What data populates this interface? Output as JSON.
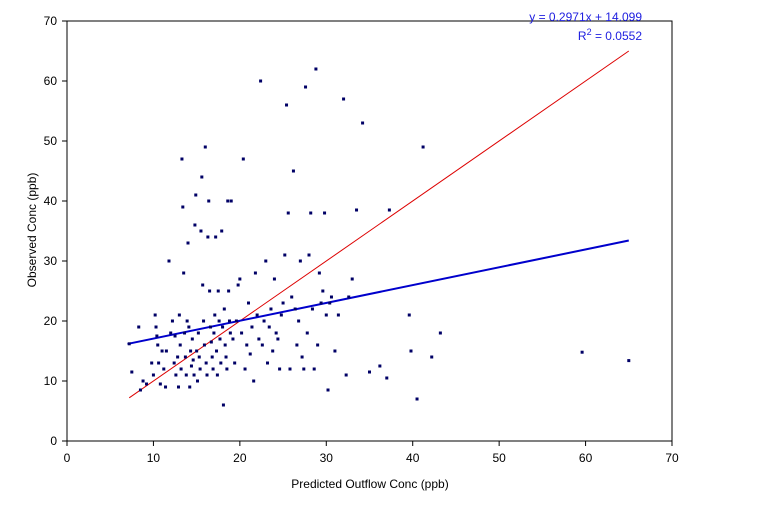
{
  "chart_data": {
    "type": "scatter",
    "xlabel": "Predicted Outflow Conc (ppb)",
    "ylabel": "Observed Conc (ppb)",
    "xlim": [
      0,
      70
    ],
    "ylim": [
      0,
      70
    ],
    "xticks": [
      0,
      10,
      20,
      30,
      40,
      50,
      60,
      70
    ],
    "yticks": [
      0,
      10,
      20,
      30,
      40,
      50,
      60,
      70
    ],
    "grid": false,
    "colors": {
      "points": "#000066",
      "regression_line": "#0000cc",
      "one_to_one_line": "#dd0000",
      "equation_text": "#2020e0"
    },
    "annotations": {
      "equation": "y = 0.2971x + 14.099",
      "r2_prefix": "R",
      "r2_sup": "2",
      "r2_value": " = 0.0552"
    },
    "regression": {
      "slope": 0.2971,
      "intercept": 14.099,
      "x_range": [
        7,
        65
      ]
    },
    "one_to_one_line": {
      "from": [
        7.2,
        7.2
      ],
      "to": [
        65,
        65
      ]
    },
    "points": [
      [
        7.5,
        11.5
      ],
      [
        7.2,
        16.2
      ],
      [
        8.3,
        19
      ],
      [
        8.5,
        8.5
      ],
      [
        8.8,
        10
      ],
      [
        9.2,
        9.5
      ],
      [
        9.8,
        13
      ],
      [
        10,
        11
      ],
      [
        10.2,
        21
      ],
      [
        10.3,
        19
      ],
      [
        10.4,
        17.5
      ],
      [
        10.5,
        16
      ],
      [
        10.6,
        13
      ],
      [
        10.8,
        9.5
      ],
      [
        11,
        15
      ],
      [
        11.2,
        12
      ],
      [
        11.4,
        9
      ],
      [
        11.5,
        15
      ],
      [
        11.8,
        30
      ],
      [
        12,
        18
      ],
      [
        12.2,
        20
      ],
      [
        12.4,
        13
      ],
      [
        12.5,
        17.5
      ],
      [
        12.6,
        11
      ],
      [
        12.8,
        14
      ],
      [
        12.9,
        9
      ],
      [
        13,
        21
      ],
      [
        13.1,
        16
      ],
      [
        13.2,
        12
      ],
      [
        13.3,
        47
      ],
      [
        13.4,
        39
      ],
      [
        13.5,
        28
      ],
      [
        13.6,
        18
      ],
      [
        13.7,
        14
      ],
      [
        13.8,
        11
      ],
      [
        13.9,
        20
      ],
      [
        14,
        33
      ],
      [
        14.1,
        19
      ],
      [
        14.2,
        9
      ],
      [
        14.3,
        15
      ],
      [
        14.4,
        12.5
      ],
      [
        14.5,
        17
      ],
      [
        14.6,
        13.5
      ],
      [
        14.7,
        11
      ],
      [
        14.8,
        36
      ],
      [
        14.9,
        41
      ],
      [
        15,
        15
      ],
      [
        15.1,
        10
      ],
      [
        15.2,
        18
      ],
      [
        15.3,
        14
      ],
      [
        15.4,
        12
      ],
      [
        15.5,
        35
      ],
      [
        15.6,
        44
      ],
      [
        15.7,
        26
      ],
      [
        15.8,
        20
      ],
      [
        15.9,
        16
      ],
      [
        16,
        49
      ],
      [
        16.1,
        13
      ],
      [
        16.2,
        11
      ],
      [
        16.3,
        34
      ],
      [
        16.4,
        40
      ],
      [
        16.5,
        25
      ],
      [
        16.6,
        19
      ],
      [
        16.7,
        16.5
      ],
      [
        16.8,
        14
      ],
      [
        16.9,
        12
      ],
      [
        17,
        18
      ],
      [
        17.1,
        21
      ],
      [
        17.2,
        34
      ],
      [
        17.3,
        15
      ],
      [
        17.4,
        11
      ],
      [
        17.5,
        25
      ],
      [
        17.6,
        20
      ],
      [
        17.7,
        17
      ],
      [
        17.8,
        13
      ],
      [
        17.9,
        35
      ],
      [
        18,
        19
      ],
      [
        18.1,
        6
      ],
      [
        18.2,
        22
      ],
      [
        18.3,
        16
      ],
      [
        18.4,
        14
      ],
      [
        18.5,
        12
      ],
      [
        18.6,
        40
      ],
      [
        18.7,
        25
      ],
      [
        18.8,
        20
      ],
      [
        18.9,
        18
      ],
      [
        19,
        40
      ],
      [
        19.2,
        17
      ],
      [
        19.4,
        13
      ],
      [
        19.6,
        20
      ],
      [
        19.8,
        26
      ],
      [
        20,
        27
      ],
      [
        20.2,
        18
      ],
      [
        20.4,
        47
      ],
      [
        20.6,
        12
      ],
      [
        20.8,
        16
      ],
      [
        21,
        23
      ],
      [
        21.2,
        14.5
      ],
      [
        21.4,
        19
      ],
      [
        21.6,
        10
      ],
      [
        21.8,
        28
      ],
      [
        22,
        21
      ],
      [
        22.2,
        17
      ],
      [
        22.4,
        60
      ],
      [
        22.6,
        16
      ],
      [
        22.8,
        20
      ],
      [
        23,
        30
      ],
      [
        23.2,
        13
      ],
      [
        23.4,
        19
      ],
      [
        23.6,
        22
      ],
      [
        23.8,
        15
      ],
      [
        24,
        27
      ],
      [
        24.2,
        18
      ],
      [
        24.4,
        17
      ],
      [
        24.6,
        12
      ],
      [
        24.8,
        21
      ],
      [
        25,
        23
      ],
      [
        25.2,
        31
      ],
      [
        25.4,
        56
      ],
      [
        25.6,
        38
      ],
      [
        25.8,
        12
      ],
      [
        26,
        24
      ],
      [
        26.2,
        45
      ],
      [
        26.4,
        22
      ],
      [
        26.6,
        16
      ],
      [
        26.8,
        20
      ],
      [
        27,
        30
      ],
      [
        27.2,
        14
      ],
      [
        27.4,
        12
      ],
      [
        27.6,
        59
      ],
      [
        27.8,
        18
      ],
      [
        28,
        31
      ],
      [
        28.2,
        38
      ],
      [
        28.4,
        22
      ],
      [
        28.6,
        12
      ],
      [
        28.8,
        62
      ],
      [
        29,
        16
      ],
      [
        29.2,
        28
      ],
      [
        29.4,
        23
      ],
      [
        29.6,
        25
      ],
      [
        29.8,
        38
      ],
      [
        30,
        21
      ],
      [
        30.2,
        8.5
      ],
      [
        30.4,
        23
      ],
      [
        30.6,
        24
      ],
      [
        31,
        15
      ],
      [
        31.4,
        21
      ],
      [
        32,
        57
      ],
      [
        32.3,
        11
      ],
      [
        32.6,
        24
      ],
      [
        33,
        27
      ],
      [
        33.5,
        38.5
      ],
      [
        34.2,
        53
      ],
      [
        35,
        11.5
      ],
      [
        36.2,
        12.5
      ],
      [
        37,
        10.5
      ],
      [
        37.3,
        38.5
      ],
      [
        39.6,
        21
      ],
      [
        39.8,
        15
      ],
      [
        40.5,
        7
      ],
      [
        41.2,
        49
      ],
      [
        42.2,
        14
      ],
      [
        43.2,
        18
      ],
      [
        59.6,
        14.8
      ],
      [
        65,
        13.4
      ]
    ]
  }
}
